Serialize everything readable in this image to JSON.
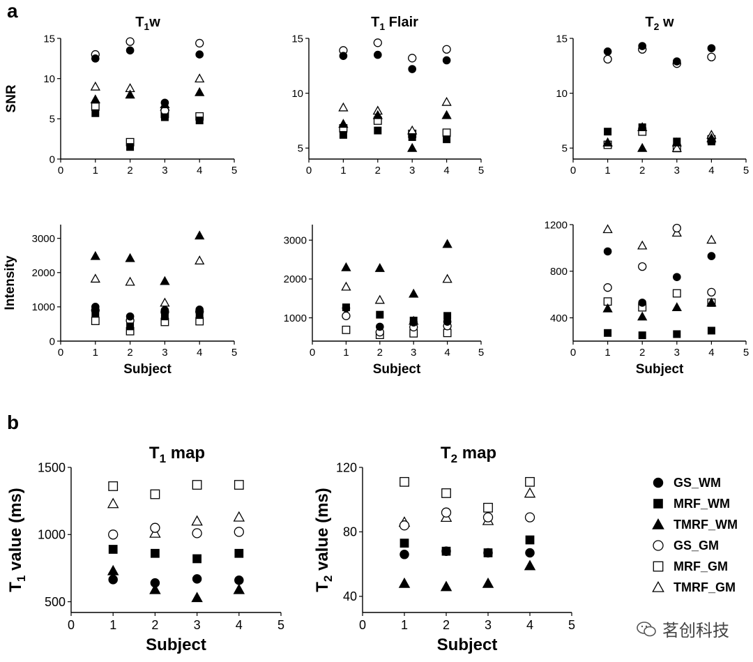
{
  "panels": {
    "a": "a",
    "b": "b"
  },
  "watermark": {
    "text": "茗创科技"
  },
  "legend": [
    {
      "label": "GS_WM",
      "marker": "circle-filled"
    },
    {
      "label": "MRF_WM",
      "marker": "square-filled"
    },
    {
      "label": "TMRF_WM",
      "marker": "triangle-filled"
    },
    {
      "label": "GS_GM",
      "marker": "circle-open"
    },
    {
      "label": "MRF_GM",
      "marker": "square-open"
    },
    {
      "label": "TMRF_GM",
      "marker": "triangle-open"
    }
  ],
  "chart_data": [
    {
      "id": "snr_t1w",
      "type": "scatter",
      "title": "T1w",
      "title_main": "T",
      "title_sub": "1",
      "title_rest": "w",
      "xlabel": "",
      "ylabel": "SNR",
      "xlim": [
        0,
        5
      ],
      "ylim": [
        0,
        15
      ],
      "xticks": [
        0,
        1,
        2,
        3,
        4,
        5
      ],
      "yticks": [
        0,
        5,
        10,
        15
      ],
      "x": [
        1,
        2,
        3,
        4
      ],
      "series": [
        {
          "name": "GS_WM",
          "values": [
            12.5,
            13.5,
            7.0,
            13.0
          ]
        },
        {
          "name": "MRF_WM",
          "values": [
            5.7,
            1.5,
            5.2,
            4.8
          ]
        },
        {
          "name": "TMRF_WM",
          "values": [
            7.4,
            8.0,
            6.8,
            8.3
          ]
        },
        {
          "name": "GS_GM",
          "values": [
            13.0,
            14.6,
            6.0,
            14.4
          ]
        },
        {
          "name": "MRF_GM",
          "values": [
            6.5,
            2.1,
            5.6,
            5.3
          ]
        },
        {
          "name": "TMRF_GM",
          "values": [
            9.0,
            8.8,
            6.5,
            10.0
          ]
        }
      ]
    },
    {
      "id": "snr_t1flair",
      "type": "scatter",
      "title": "T1 Flair",
      "title_main": "T",
      "title_sub": "1",
      "title_rest": " Flair",
      "xlabel": "",
      "ylabel": "",
      "xlim": [
        0,
        5
      ],
      "ylim": [
        4,
        15
      ],
      "xticks": [
        0,
        1,
        2,
        3,
        4,
        5
      ],
      "yticks": [
        5,
        10,
        15
      ],
      "x": [
        1,
        2,
        3,
        4
      ],
      "series": [
        {
          "name": "GS_WM",
          "values": [
            13.4,
            13.5,
            12.2,
            13.0
          ]
        },
        {
          "name": "MRF_WM",
          "values": [
            6.2,
            6.6,
            6.0,
            5.8
          ]
        },
        {
          "name": "TMRF_WM",
          "values": [
            7.2,
            8.0,
            5.0,
            8.0
          ]
        },
        {
          "name": "GS_GM",
          "values": [
            13.9,
            14.6,
            13.2,
            14.0
          ]
        },
        {
          "name": "MRF_GM",
          "values": [
            6.8,
            7.5,
            6.3,
            6.4
          ]
        },
        {
          "name": "TMRF_GM",
          "values": [
            8.7,
            8.4,
            6.6,
            9.2
          ]
        }
      ]
    },
    {
      "id": "snr_t2w",
      "type": "scatter",
      "title": "T2 w",
      "title_main": "T",
      "title_sub": "2",
      "title_rest": " w",
      "xlabel": "",
      "ylabel": "",
      "xlim": [
        0,
        5
      ],
      "ylim": [
        4,
        15
      ],
      "xticks": [
        0,
        1,
        2,
        3,
        4,
        5
      ],
      "yticks": [
        5,
        10,
        15
      ],
      "x": [
        1,
        2,
        3,
        4
      ],
      "series": [
        {
          "name": "GS_WM",
          "values": [
            13.8,
            14.3,
            12.9,
            14.1
          ]
        },
        {
          "name": "MRF_WM",
          "values": [
            6.5,
            6.9,
            5.6,
            5.6
          ]
        },
        {
          "name": "TMRF_WM",
          "values": [
            5.5,
            5.0,
            5.5,
            5.9
          ]
        },
        {
          "name": "GS_GM",
          "values": [
            13.1,
            14.0,
            12.7,
            13.3
          ]
        },
        {
          "name": "MRF_GM",
          "values": [
            5.3,
            6.5,
            5.0,
            5.8
          ]
        },
        {
          "name": "TMRF_GM",
          "values": [
            5.5,
            6.9,
            5.0,
            6.2
          ]
        }
      ]
    },
    {
      "id": "int_t1w",
      "type": "scatter",
      "title": "",
      "xlabel": "Subject",
      "ylabel": "Intensity",
      "xlim": [
        0,
        5
      ],
      "ylim": [
        0,
        3400
      ],
      "xticks": [
        0,
        1,
        2,
        3,
        4,
        5
      ],
      "yticks": [
        0,
        1000,
        2000,
        3000
      ],
      "x": [
        1,
        2,
        3,
        4
      ],
      "series": [
        {
          "name": "GS_WM",
          "values": [
            1000,
            720,
            900,
            920
          ]
        },
        {
          "name": "MRF_WM",
          "values": [
            820,
            430,
            720,
            760
          ]
        },
        {
          "name": "TMRF_WM",
          "values": [
            2480,
            2420,
            1750,
            3080
          ]
        },
        {
          "name": "GS_GM",
          "values": [
            900,
            600,
            850,
            860
          ]
        },
        {
          "name": "MRF_GM",
          "values": [
            590,
            290,
            560,
            580
          ]
        },
        {
          "name": "TMRF_GM",
          "values": [
            1820,
            1730,
            1120,
            2350
          ]
        }
      ]
    },
    {
      "id": "int_t1flair",
      "type": "scatter",
      "title": "",
      "xlabel": "Subject",
      "ylabel": "",
      "xlim": [
        0,
        5
      ],
      "ylim": [
        400,
        3400
      ],
      "xticks": [
        0,
        1,
        2,
        3,
        4,
        5
      ],
      "yticks": [
        1000,
        2000,
        3000
      ],
      "x": [
        1,
        2,
        3,
        4
      ],
      "series": [
        {
          "name": "GS_WM",
          "values": [
            1250,
            770,
            880,
            900
          ]
        },
        {
          "name": "MRF_WM",
          "values": [
            1270,
            1080,
            930,
            1050
          ]
        },
        {
          "name": "TMRF_WM",
          "values": [
            2300,
            2280,
            1620,
            2900
          ]
        },
        {
          "name": "GS_GM",
          "values": [
            1050,
            630,
            760,
            790
          ]
        },
        {
          "name": "MRF_GM",
          "values": [
            690,
            560,
            600,
            610
          ]
        },
        {
          "name": "TMRF_GM",
          "values": [
            1800,
            1460,
            920,
            2000
          ]
        }
      ]
    },
    {
      "id": "int_t2w",
      "type": "scatter",
      "title": "",
      "xlabel": "Subject",
      "ylabel": "",
      "xlim": [
        0,
        5
      ],
      "ylim": [
        200,
        1200
      ],
      "xticks": [
        0,
        1,
        2,
        3,
        4,
        5
      ],
      "yticks": [
        400,
        800,
        1200
      ],
      "x": [
        1,
        2,
        3,
        4
      ],
      "series": [
        {
          "name": "GS_WM",
          "values": [
            970,
            530,
            750,
            930
          ]
        },
        {
          "name": "MRF_WM",
          "values": [
            270,
            250,
            260,
            290
          ]
        },
        {
          "name": "TMRF_WM",
          "values": [
            480,
            410,
            490,
            530
          ]
        },
        {
          "name": "GS_GM",
          "values": [
            660,
            840,
            1170,
            620
          ]
        },
        {
          "name": "MRF_GM",
          "values": [
            540,
            490,
            610,
            530
          ]
        },
        {
          "name": "TMRF_GM",
          "values": [
            1160,
            1020,
            1130,
            1070
          ]
        }
      ]
    },
    {
      "id": "t1map",
      "type": "scatter",
      "title": "T1 map",
      "title_main": "T",
      "title_sub": "1",
      "title_rest": " map",
      "xlabel": "Subject",
      "ylabel": "T1 value (ms)",
      "ylabel_main": "T",
      "ylabel_sub": "1",
      "ylabel_rest": " value (ms)",
      "xlim": [
        0,
        5
      ],
      "ylim": [
        420,
        1500
      ],
      "xticks": [
        0,
        1,
        2,
        3,
        4,
        5
      ],
      "yticks": [
        500,
        1000,
        1500
      ],
      "x": [
        1,
        2,
        3,
        4
      ],
      "series": [
        {
          "name": "GS_WM",
          "values": [
            665,
            640,
            670,
            660
          ]
        },
        {
          "name": "MRF_WM",
          "values": [
            890,
            860,
            820,
            860
          ]
        },
        {
          "name": "TMRF_WM",
          "values": [
            730,
            590,
            530,
            590
          ]
        },
        {
          "name": "GS_GM",
          "values": [
            1000,
            1050,
            1010,
            1020
          ]
        },
        {
          "name": "MRF_GM",
          "values": [
            1360,
            1300,
            1370,
            1370
          ]
        },
        {
          "name": "TMRF_GM",
          "values": [
            1230,
            1010,
            1100,
            1130
          ]
        }
      ]
    },
    {
      "id": "t2map",
      "type": "scatter",
      "title": "T2 map",
      "title_main": "T",
      "title_sub": "2",
      "title_rest": " map",
      "xlabel": "Subject",
      "ylabel": "T2 value (ms)",
      "ylabel_main": "T",
      "ylabel_sub": "2",
      "ylabel_rest": " value (ms)",
      "xlim": [
        0,
        5
      ],
      "ylim": [
        30,
        120
      ],
      "xticks": [
        0,
        1,
        2,
        3,
        4,
        5
      ],
      "yticks": [
        40,
        80,
        120
      ],
      "x": [
        1,
        2,
        3,
        4
      ],
      "series": [
        {
          "name": "GS_WM",
          "values": [
            66,
            68,
            67,
            67
          ]
        },
        {
          "name": "MRF_WM",
          "values": [
            73,
            68,
            67,
            75
          ]
        },
        {
          "name": "TMRF_WM",
          "values": [
            48,
            46,
            48,
            59
          ]
        },
        {
          "name": "GS_GM",
          "values": [
            84,
            92,
            89,
            89
          ]
        },
        {
          "name": "MRF_GM",
          "values": [
            111,
            104,
            95,
            111
          ]
        },
        {
          "name": "TMRF_GM",
          "values": [
            86,
            89,
            87,
            104
          ]
        }
      ]
    }
  ]
}
